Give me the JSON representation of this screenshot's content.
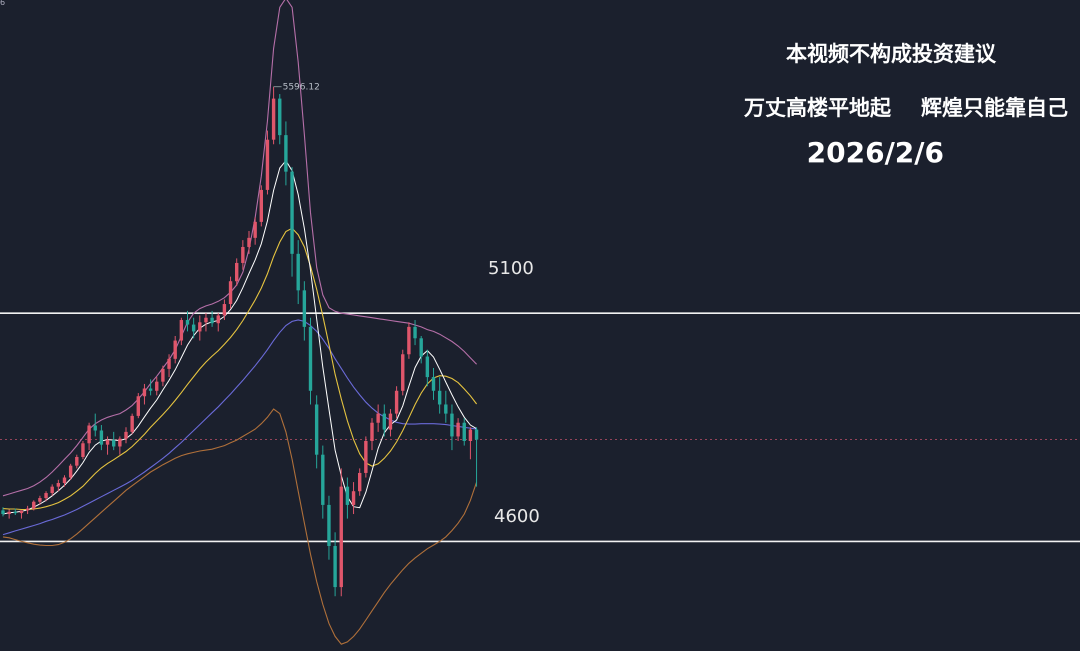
{
  "overlay": {
    "disclaimer": "本视频不构成投资建议",
    "motto_left": "万丈高楼平地起",
    "motto_right": "辉煌只能靠自己",
    "date": "2026/2/6"
  },
  "corner_label": "6",
  "colors": {
    "background": "#1b202d",
    "up": "#e0566b",
    "down": "#26a69a",
    "ma_short": "#ffffff",
    "ma_mid": "#e6c440",
    "ma_long": "#6a6ad8",
    "band_upper": "#b56fa8",
    "band_lower": "#b0703a",
    "level_line": "#f2f2f2",
    "price_line": "#c0506a"
  },
  "chart_data": {
    "type": "candlestick",
    "high_label": "5596.12",
    "levels": [
      {
        "label": "5100",
        "value": 5100
      },
      {
        "label": "4600",
        "value": 4600
      }
    ],
    "last_price": 4823,
    "ylim": [
      4360,
      5786
    ],
    "candles": [
      [
        4668,
        4675,
        4655,
        4660
      ],
      [
        4660,
        4670,
        4650,
        4665
      ],
      [
        4665,
        4672,
        4658,
        4662
      ],
      [
        4662,
        4668,
        4650,
        4668
      ],
      [
        4668,
        4678,
        4660,
        4672
      ],
      [
        4672,
        4690,
        4668,
        4687
      ],
      [
        4687,
        4700,
        4680,
        4695
      ],
      [
        4695,
        4710,
        4688,
        4706
      ],
      [
        4706,
        4725,
        4700,
        4720
      ],
      [
        4720,
        4735,
        4710,
        4728
      ],
      [
        4728,
        4745,
        4720,
        4740
      ],
      [
        4740,
        4770,
        4735,
        4766
      ],
      [
        4766,
        4790,
        4760,
        4785
      ],
      [
        4785,
        4820,
        4780,
        4815
      ],
      [
        4815,
        4860,
        4800,
        4854
      ],
      [
        4854,
        4880,
        4830,
        4843
      ],
      [
        4843,
        4855,
        4800,
        4812
      ],
      [
        4812,
        4830,
        4790,
        4822
      ],
      [
        4822,
        4840,
        4800,
        4808
      ],
      [
        4808,
        4830,
        4790,
        4825
      ],
      [
        4825,
        4850,
        4815,
        4840
      ],
      [
        4840,
        4880,
        4835,
        4875
      ],
      [
        4875,
        4925,
        4870,
        4918
      ],
      [
        4918,
        4945,
        4900,
        4935
      ],
      [
        4935,
        4955,
        4920,
        4930
      ],
      [
        4930,
        4960,
        4920,
        4950
      ],
      [
        4950,
        4985,
        4940,
        4978
      ],
      [
        4978,
        5010,
        4960,
        5000
      ],
      [
        5000,
        5050,
        4990,
        5040
      ],
      [
        5040,
        5090,
        5030,
        5085
      ],
      [
        5085,
        5105,
        5060,
        5075
      ],
      [
        5075,
        5090,
        5045,
        5060
      ],
      [
        5060,
        5095,
        5040,
        5080
      ],
      [
        5080,
        5100,
        5060,
        5090
      ],
      [
        5090,
        5105,
        5070,
        5078
      ],
      [
        5078,
        5100,
        5060,
        5095
      ],
      [
        5095,
        5130,
        5085,
        5120
      ],
      [
        5120,
        5180,
        5110,
        5170
      ],
      [
        5170,
        5220,
        5160,
        5210
      ],
      [
        5210,
        5260,
        5195,
        5245
      ],
      [
        5245,
        5280,
        5230,
        5265
      ],
      [
        5265,
        5310,
        5250,
        5300
      ],
      [
        5300,
        5380,
        5290,
        5370
      ],
      [
        5370,
        5500,
        5360,
        5480
      ],
      [
        5480,
        5596,
        5470,
        5570
      ],
      [
        5570,
        5580,
        5470,
        5490
      ],
      [
        5490,
        5520,
        5380,
        5410
      ],
      [
        5410,
        5420,
        5180,
        5230
      ],
      [
        5230,
        5260,
        5120,
        5150
      ],
      [
        5150,
        5170,
        5040,
        5070
      ],
      [
        5070,
        5090,
        4900,
        4930
      ],
      [
        4900,
        4920,
        4760,
        4790
      ],
      [
        4790,
        4810,
        4650,
        4680
      ],
      [
        4680,
        4700,
        4560,
        4590
      ],
      [
        4590,
        4620,
        4480,
        4500
      ],
      [
        4500,
        4760,
        4480,
        4720
      ],
      [
        4720,
        4740,
        4650,
        4680
      ],
      [
        4680,
        4730,
        4660,
        4710
      ],
      [
        4710,
        4760,
        4700,
        4750
      ],
      [
        4750,
        4830,
        4740,
        4820
      ],
      [
        4820,
        4870,
        4800,
        4860
      ],
      [
        4860,
        4900,
        4840,
        4880
      ],
      [
        4880,
        4900,
        4830,
        4845
      ],
      [
        4845,
        4890,
        4830,
        4880
      ],
      [
        4880,
        4940,
        4870,
        4930
      ],
      [
        4930,
        5020,
        4920,
        5010
      ],
      [
        5010,
        5080,
        5000,
        5070
      ],
      [
        5070,
        5085,
        5030,
        5045
      ],
      [
        5045,
        5050,
        4990,
        5005
      ],
      [
        5005,
        5020,
        4940,
        4960
      ],
      [
        4960,
        4980,
        4910,
        4930
      ],
      [
        4930,
        4960,
        4880,
        4900
      ],
      [
        4900,
        4930,
        4860,
        4880
      ],
      [
        4880,
        4900,
        4800,
        4830
      ],
      [
        4830,
        4870,
        4820,
        4860
      ],
      [
        4860,
        4870,
        4810,
        4820
      ],
      [
        4820,
        4850,
        4780,
        4845
      ],
      [
        4845,
        4850,
        4720,
        4823
      ]
    ],
    "ma_short": [
      4660,
      4663,
      4664,
      4666,
      4669,
      4675,
      4682,
      4690,
      4700,
      4711,
      4723,
      4737,
      4754,
      4773,
      4795,
      4811,
      4820,
      4823,
      4822,
      4821,
      4825,
      4836,
      4853,
      4873,
      4892,
      4910,
      4932,
      4953,
      4976,
      5003,
      5030,
      5051,
      5067,
      5076,
      5081,
      5084,
      5093,
      5108,
      5128,
      5156,
      5187,
      5217,
      5252,
      5302,
      5369,
      5418,
      5434,
      5412,
      5360,
      5285,
      5194,
      5087,
      4982,
      4889,
      4800,
      4744,
      4698,
      4676,
      4674,
      4708,
      4755,
      4804,
      4838,
      4856,
      4866,
      4897,
      4940,
      4981,
      5006,
      5018,
      5004,
      4977,
      4949,
      4921,
      4895,
      4872,
      4855,
      4847
    ],
    "ma_mid": [
      4672,
      4671,
      4671,
      4670,
      4670,
      4671,
      4673,
      4676,
      4680,
      4685,
      4692,
      4700,
      4710,
      4721,
      4735,
      4749,
      4761,
      4771,
      4779,
      4788,
      4797,
      4808,
      4821,
      4835,
      4850,
      4864,
      4878,
      4893,
      4909,
      4926,
      4944,
      4961,
      4978,
      4993,
      5006,
      5018,
      5032,
      5047,
      5064,
      5084,
      5106,
      5129,
      5155,
      5186,
      5224,
      5256,
      5279,
      5286,
      5272,
      5245,
      5203,
      5152,
      5094,
      5031,
      4966,
      4912,
      4864,
      4823,
      4792,
      4772,
      4765,
      4770,
      4782,
      4798,
      4818,
      4843,
      4871,
      4900,
      4925,
      4945,
      4958,
      4963,
      4962,
      4957,
      4948,
      4934,
      4919,
      4901
    ],
    "ma_long": [
      4615,
      4619,
      4623,
      4627,
      4631,
      4635,
      4639,
      4644,
      4648,
      4653,
      4658,
      4664,
      4670,
      4677,
      4684,
      4691,
      4698,
      4705,
      4712,
      4719,
      4726,
      4734,
      4743,
      4752,
      4762,
      4772,
      4782,
      4793,
      4805,
      4817,
      4830,
      4843,
      4856,
      4869,
      4882,
      4895,
      4909,
      4923,
      4938,
      4953,
      4969,
      4985,
      5002,
      5020,
      5040,
      5058,
      5073,
      5082,
      5085,
      5082,
      5073,
      5060,
      5043,
      5023,
      5000,
      4979,
      4958,
      4938,
      4921,
      4905,
      4892,
      4881,
      4873,
      4866,
      4861,
      4858,
      4857,
      4857,
      4858,
      4858,
      4858,
      4857,
      4856,
      4854,
      4852,
      4850,
      4848,
      4846
    ],
    "band_upper": [
      4700,
      4704,
      4708,
      4712,
      4716,
      4722,
      4730,
      4740,
      4752,
      4766,
      4780,
      4794,
      4810,
      4828,
      4846,
      4858,
      4866,
      4872,
      4876,
      4880,
      4888,
      4898,
      4912,
      4928,
      4946,
      4962,
      4980,
      4998,
      5020,
      5050,
      5080,
      5100,
      5110,
      5116,
      5120,
      5126,
      5134,
      5146,
      5162,
      5190,
      5240,
      5310,
      5400,
      5520,
      5680,
      5770,
      5790,
      5770,
      5650,
      5490,
      5320,
      5200,
      5140,
      5112,
      5104,
      5100,
      5098,
      5096,
      5094,
      5092,
      5090,
      5088,
      5086,
      5084,
      5082,
      5080,
      5078,
      5074,
      5070,
      5064,
      5060,
      5054,
      5046,
      5038,
      5028,
      5016,
      5002,
      4988
    ],
    "band_lower": [
      4610,
      4608,
      4604,
      4600,
      4597,
      4594,
      4592,
      4591,
      4591,
      4593,
      4598,
      4606,
      4616,
      4628,
      4640,
      4652,
      4664,
      4676,
      4688,
      4700,
      4712,
      4722,
      4732,
      4742,
      4752,
      4760,
      4768,
      4775,
      4782,
      4788,
      4792,
      4795,
      4798,
      4800,
      4802,
      4806,
      4810,
      4816,
      4822,
      4830,
      4838,
      4846,
      4858,
      4872,
      4890,
      4880,
      4840,
      4780,
      4710,
      4640,
      4572,
      4512,
      4462,
      4420,
      4392,
      4375,
      4380,
      4392,
      4408,
      4428,
      4448,
      4468,
      4488,
      4506,
      4522,
      4538,
      4552,
      4564,
      4574,
      4584,
      4592,
      4600,
      4610,
      4624,
      4640,
      4660,
      4690,
      4730
    ]
  }
}
